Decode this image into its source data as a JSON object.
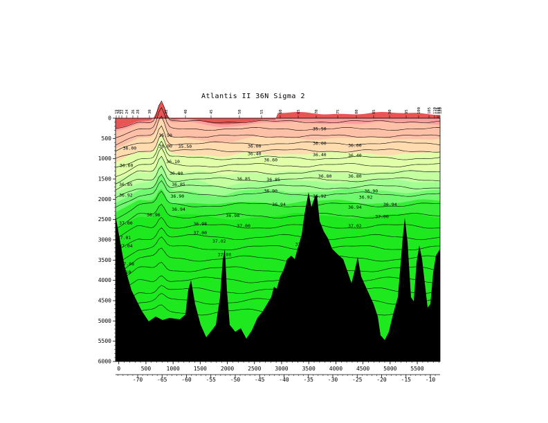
{
  "chart_data": {
    "type": "heatmap",
    "title": "Atlantis II  36N Sigma 2",
    "xlabel": "",
    "ylabel": "",
    "xlim": [
      -60,
      5920
    ],
    "ylim": [
      6000,
      0
    ],
    "x_ticks": [
      0,
      500,
      1000,
      1500,
      2000,
      2500,
      3000,
      3500,
      4000,
      4500,
      5000,
      5500
    ],
    "y_ticks": [
      0,
      500,
      1000,
      1500,
      2000,
      2500,
      3000,
      3500,
      4000,
      4500,
      5000,
      5500,
      6000
    ],
    "lon_ticks": [
      -70,
      -65,
      -60,
      -55,
      -50,
      -45,
      -40,
      -35,
      -30,
      -25,
      -20,
      -15,
      -10
    ],
    "station_labels": [
      "19",
      "20",
      "22",
      "24",
      "26",
      "28",
      "30",
      "32",
      "40",
      "45",
      "50",
      "55",
      "60",
      "65",
      "70",
      "75",
      "80",
      "85",
      "90",
      "95",
      "100",
      "105",
      "110",
      "115",
      "118",
      "120"
    ],
    "fill_levels": [
      35.5,
      36.0,
      36.4,
      36.8,
      36.9,
      36.96,
      37.0,
      37.04,
      37.1
    ],
    "fill_colors": [
      "#e85555",
      "#ff9e9e",
      "#ffc0a8",
      "#ffdcb0",
      "#e0ffa8",
      "#c4ffa0",
      "#a0ff90",
      "#70f870",
      "#36ee36",
      "#1ee81e"
    ],
    "contour_labels": [
      {
        "x": 3700,
        "y": 260,
        "text": "35.50"
      },
      {
        "x": 860,
        "y": 430,
        "text": "35.50"
      },
      {
        "x": 200,
        "y": 740,
        "text": "36.00"
      },
      {
        "x": 860,
        "y": 690,
        "text": "36.00"
      },
      {
        "x": 1220,
        "y": 700,
        "text": "35.50"
      },
      {
        "x": 2500,
        "y": 690,
        "text": "36.00"
      },
      {
        "x": 3700,
        "y": 620,
        "text": "36.00"
      },
      {
        "x": 4350,
        "y": 670,
        "text": "36.00"
      },
      {
        "x": 2500,
        "y": 880,
        "text": "36.40"
      },
      {
        "x": 3700,
        "y": 900,
        "text": "36.40"
      },
      {
        "x": 4350,
        "y": 920,
        "text": "36.40"
      },
      {
        "x": 2800,
        "y": 1030,
        "text": "36.60"
      },
      {
        "x": 1000,
        "y": 1070,
        "text": "36.10"
      },
      {
        "x": 140,
        "y": 1170,
        "text": "36.60"
      },
      {
        "x": 1060,
        "y": 1360,
        "text": "36.80"
      },
      {
        "x": 2300,
        "y": 1500,
        "text": "36.85"
      },
      {
        "x": 2850,
        "y": 1520,
        "text": "36.85"
      },
      {
        "x": 3800,
        "y": 1430,
        "text": "36.80"
      },
      {
        "x": 4350,
        "y": 1430,
        "text": "36.80"
      },
      {
        "x": 130,
        "y": 1640,
        "text": "36.85"
      },
      {
        "x": 1100,
        "y": 1640,
        "text": "36.85"
      },
      {
        "x": 2800,
        "y": 1800,
        "text": "36.90"
      },
      {
        "x": 4650,
        "y": 1800,
        "text": "36.90"
      },
      {
        "x": 130,
        "y": 1900,
        "text": "36.92"
      },
      {
        "x": 1080,
        "y": 1930,
        "text": "36.90"
      },
      {
        "x": 3700,
        "y": 1930,
        "text": "36.92"
      },
      {
        "x": 4550,
        "y": 1950,
        "text": "36.92"
      },
      {
        "x": 2950,
        "y": 2130,
        "text": "36.94"
      },
      {
        "x": 4350,
        "y": 2200,
        "text": "36.94"
      },
      {
        "x": 5000,
        "y": 2130,
        "text": "36.94"
      },
      {
        "x": 1100,
        "y": 2250,
        "text": "36.94"
      },
      {
        "x": 640,
        "y": 2390,
        "text": "36.96"
      },
      {
        "x": 2100,
        "y": 2400,
        "text": "36.98"
      },
      {
        "x": 130,
        "y": 2590,
        "text": "37.00"
      },
      {
        "x": 1500,
        "y": 2610,
        "text": "36.98"
      },
      {
        "x": 2300,
        "y": 2660,
        "text": "37.00"
      },
      {
        "x": 4350,
        "y": 2660,
        "text": "37.02"
      },
      {
        "x": 4850,
        "y": 2430,
        "text": "37.00"
      },
      {
        "x": 1500,
        "y": 2830,
        "text": "37.00"
      },
      {
        "x": 100,
        "y": 2950,
        "text": "37.01"
      },
      {
        "x": 1850,
        "y": 3030,
        "text": "37.02"
      },
      {
        "x": 130,
        "y": 3150,
        "text": "37.04"
      },
      {
        "x": 3300,
        "y": 3110,
        "text": "37"
      },
      {
        "x": 1950,
        "y": 3370,
        "text": "37.06"
      },
      {
        "x": 160,
        "y": 3600,
        "text": "37.08"
      },
      {
        "x": 100,
        "y": 3800,
        "text": "37.10"
      }
    ]
  },
  "colors": {
    "bathymetry": "#000000",
    "contour": "#000000",
    "background": "#ffffff"
  }
}
